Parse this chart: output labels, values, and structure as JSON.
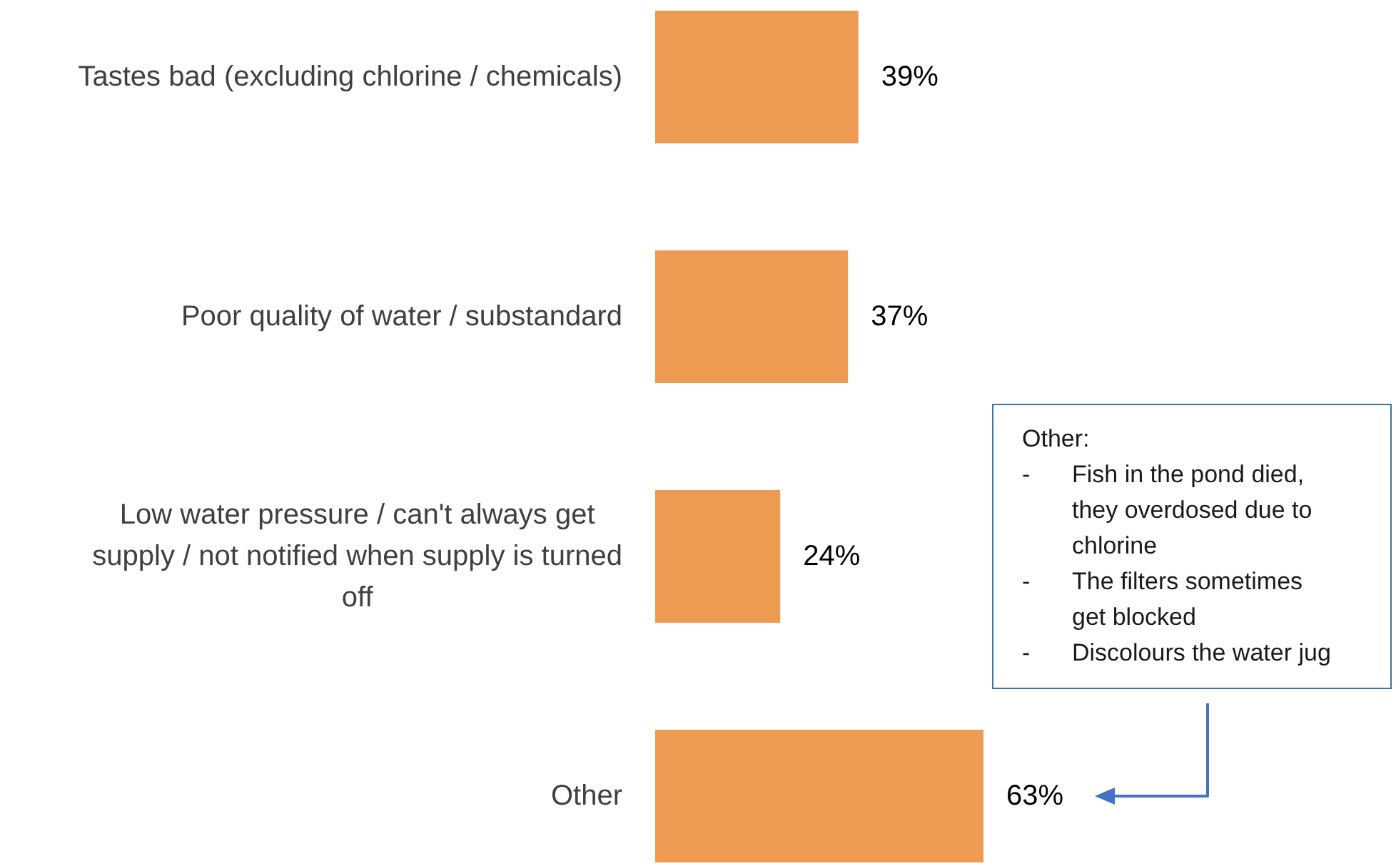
{
  "chart_data": {
    "type": "bar",
    "orientation": "horizontal",
    "categories": [
      "Tastes bad (excluding chlorine / chemicals)",
      "Poor quality of water / substandard",
      "Low water pressure / can't always get supply / not notified when supply is turned off",
      "Other"
    ],
    "values": [
      39,
      37,
      24,
      63
    ],
    "color": "#ed9a53",
    "value_labels": [
      "39%",
      "37%",
      "24%",
      "63%"
    ],
    "tick_labels": "y",
    "annotations": [
      "Other:\n- Fish in the pond died, they overdosed due to chlorine\n- The filters sometimes get blocked\n- Discolours the water jug"
    ]
  }
}
